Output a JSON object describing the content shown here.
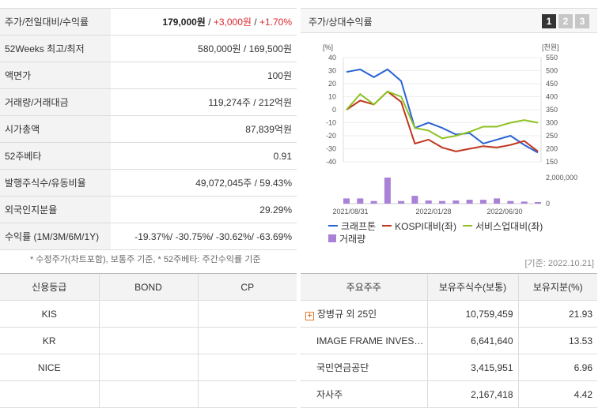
{
  "summary": {
    "rows": [
      {
        "label": "주가/전일대비/수익률",
        "price": "179,000원",
        "sep1": " / ",
        "change": "+3,000원",
        "sep2": " / ",
        "rate": "+1.70%"
      },
      {
        "label": "52Weeks 최고/최저",
        "value": "580,000원 / 169,500원"
      },
      {
        "label": "액면가",
        "value": "100원"
      },
      {
        "label": "거래량/거래대금",
        "value": "119,274주 / 212억원"
      },
      {
        "label": "시가총액",
        "value": "87,839억원"
      },
      {
        "label": "52주베타",
        "value": "0.91"
      },
      {
        "label": "발행주식수/유동비율",
        "value": "49,072,045주 / 59.43%"
      },
      {
        "label": "외국인지분율",
        "value": "29.29%"
      },
      {
        "label": "수익률 (1M/3M/6M/1Y)",
        "value": "-19.37%/ -30.75%/ -30.62%/ -63.69%"
      }
    ],
    "note": "* 수정주가(차트포함), 보통주 기준, * 52주베타: 주간수익률 기준",
    "base_date": "[기준: 2022.10.21]"
  },
  "chart_panel": {
    "title": "주가/상대수익률",
    "pages": [
      "1",
      "2",
      "3"
    ],
    "active_page": "1"
  },
  "chart_data": {
    "type": "line",
    "left_unit": "[%]",
    "right_unit": "[천원]",
    "left_ticks": [
      40,
      30,
      20,
      10,
      0,
      -10,
      -20,
      -30,
      -40
    ],
    "right_ticks": [
      550,
      500,
      450,
      400,
      350,
      300,
      250,
      200,
      150
    ],
    "volume_tick": "2,000,000",
    "volume_tick_zero": "0",
    "x_labels": [
      "2021/08/31",
      "2022/01/28",
      "2022/06/30"
    ],
    "ylim": [
      -40,
      40
    ],
    "series": [
      {
        "name": "크래프톤",
        "color": "#2a63d4",
        "values": [
          29,
          31,
          25,
          31,
          22,
          -14,
          -10,
          -14,
          -19,
          -18,
          -26,
          -23,
          -20,
          -27,
          -33
        ]
      },
      {
        "name": "KOSPI대비(좌)",
        "color": "#c0361e",
        "values": [
          0,
          7,
          4,
          14,
          6,
          -26,
          -23,
          -29,
          -32,
          -30,
          -28,
          -29,
          -27,
          -24,
          -32
        ]
      },
      {
        "name": "서비스업대비(좌)",
        "color": "#8dc21f",
        "values": [
          0,
          12,
          4,
          14,
          10,
          -14,
          -16,
          -22,
          -20,
          -17,
          -13,
          -13,
          -10,
          -8,
          -10
        ]
      }
    ],
    "volume": {
      "name": "거래량",
      "color": "#a982d8",
      "values": [
        0.2,
        0.2,
        0.1,
        1,
        0.1,
        0.3,
        0.12,
        0.1,
        0.12,
        0.15,
        0.15,
        0.2,
        0.1,
        0.08,
        0.06
      ]
    }
  },
  "credit": {
    "headers": [
      "신용등급",
      "BOND",
      "CP"
    ],
    "rows": [
      {
        "agency": "KIS",
        "bond": "",
        "cp": ""
      },
      {
        "agency": "KR",
        "bond": "",
        "cp": ""
      },
      {
        "agency": "NICE",
        "bond": "",
        "cp": ""
      },
      {
        "agency": "",
        "bond": "",
        "cp": ""
      }
    ]
  },
  "holders": {
    "headers": [
      "주요주주",
      "보유주식수(보통)",
      "보유지분(%)"
    ],
    "rows": [
      {
        "name": "장병규 외 25인",
        "expandable": true,
        "shares": "10,759,459",
        "pct": "21.93"
      },
      {
        "name": "IMAGE FRAME INVEST…",
        "expandable": false,
        "shares": "6,641,640",
        "pct": "13.53"
      },
      {
        "name": "국민연금공단",
        "expandable": false,
        "shares": "3,415,951",
        "pct": "6.96"
      },
      {
        "name": "자사주",
        "expandable": false,
        "shares": "2,167,418",
        "pct": "4.42"
      }
    ]
  }
}
